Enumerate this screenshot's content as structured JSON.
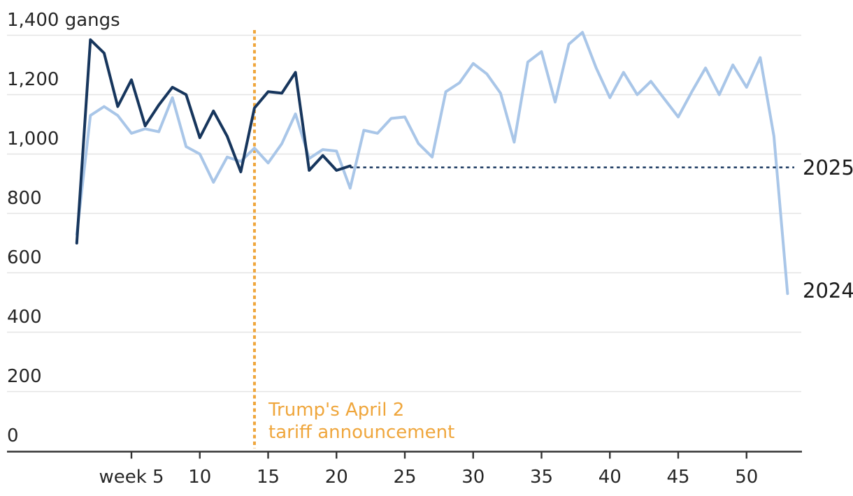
{
  "chart_data": {
    "type": "line",
    "title": "",
    "y_axis": {
      "tick_values": [
        0,
        200,
        400,
        600,
        800,
        1000,
        1200,
        1400
      ],
      "tick_labels": [
        "0",
        "200",
        "400",
        "600",
        "800",
        "1,000",
        "1,200",
        "1,400 gangs"
      ],
      "range": [
        0,
        1400
      ],
      "grid": true
    },
    "x_axis": {
      "tick_weeks": [
        5,
        10,
        15,
        20,
        25,
        30,
        35,
        40,
        45,
        50
      ],
      "tick_labels": [
        "week 5",
        "10",
        "15",
        "20",
        "25",
        "30",
        "35",
        "40",
        "45",
        "50"
      ],
      "range_weeks": [
        1,
        53
      ]
    },
    "series": [
      {
        "name": "2024",
        "color": "#a9c6e8",
        "start_week": 1,
        "values": [
          730,
          1130,
          1160,
          1130,
          1070,
          1085,
          1075,
          1190,
          1025,
          1000,
          905,
          990,
          975,
          1020,
          970,
          1035,
          1135,
          985,
          1015,
          1010,
          885,
          1080,
          1070,
          1120,
          1125,
          1035,
          990,
          1210,
          1240,
          1305,
          1270,
          1205,
          1040,
          1310,
          1345,
          1175,
          1370,
          1410,
          1290,
          1190,
          1275,
          1200,
          1245,
          1185,
          1125,
          1210,
          1290,
          1200,
          1300,
          1225,
          1325,
          1060,
          530
        ]
      },
      {
        "name": "2025",
        "color": "#17365d",
        "start_week": 1,
        "values": [
          700,
          1385,
          1340,
          1160,
          1250,
          1095,
          1165,
          1225,
          1200,
          1055,
          1145,
          1060,
          940,
          1155,
          1210,
          1205,
          1275,
          945,
          995,
          945,
          960
        ],
        "projection": {
          "style": "dotted",
          "from_week": 21,
          "value": 955
        }
      }
    ],
    "annotation": {
      "text_line1": "Trump's April 2",
      "text_line2": "tariff announcement",
      "week": 14,
      "color": "#efa63c",
      "line_style": "dotted"
    },
    "legend_position": "line-end-labels-right",
    "colors": {
      "grid": "#e4e4e4",
      "axis": "#333333",
      "text": "#262626"
    }
  }
}
